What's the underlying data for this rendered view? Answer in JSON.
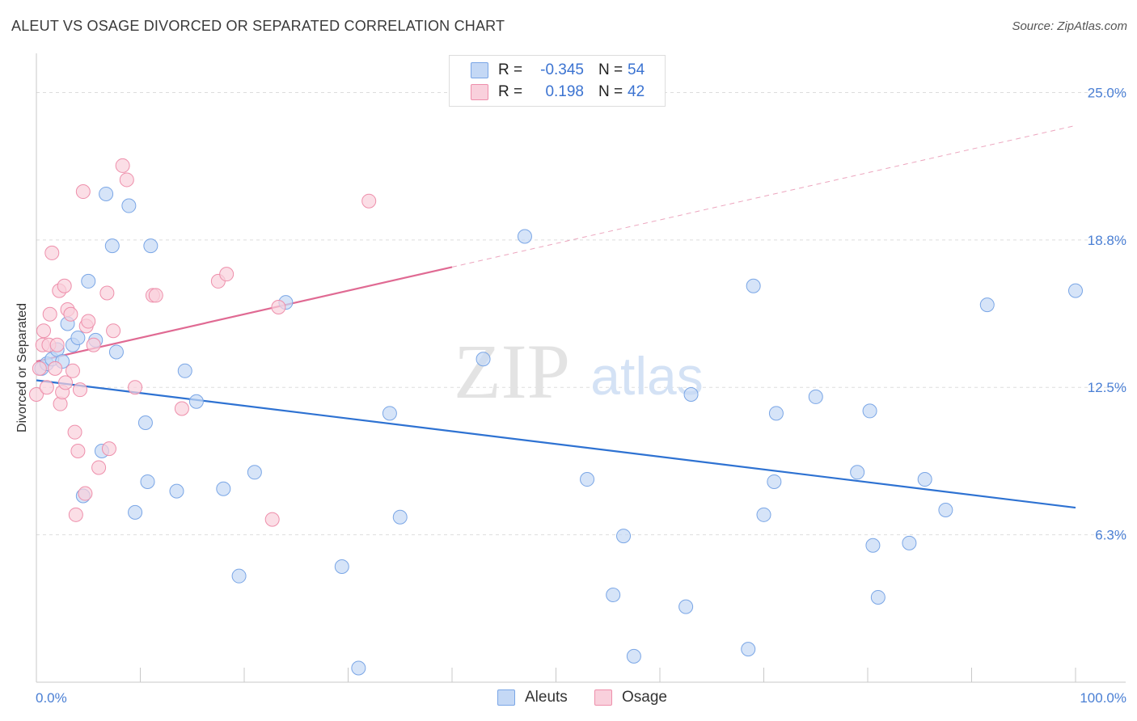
{
  "title": "ALEUT VS OSAGE DIVORCED OR SEPARATED CORRELATION CHART",
  "source": "Source: ZipAtlas.com",
  "watermark": {
    "zip": "ZIP",
    "atlas": "atlas"
  },
  "legend": {
    "rows": [
      {
        "r_label": "R =",
        "r_value": "-0.345",
        "n_label": "N =",
        "n_value": "54"
      },
      {
        "r_label": "R =",
        "r_value": "0.198",
        "n_label": "N =",
        "n_value": "42"
      }
    ]
  },
  "bottom_legend": [
    "Aleuts",
    "Osage"
  ],
  "colors": {
    "aleuts_fill": "#c4d8f5",
    "aleuts_stroke": "#7aa6e6",
    "aleuts_line": "#2e72d2",
    "osage_fill": "#f9d0dc",
    "osage_stroke": "#ee8fab",
    "osage_line": "#e06a93",
    "grid": "#dddddd",
    "tick_text": "#4a7fd4"
  },
  "chart_data": {
    "type": "scatter",
    "title": "ALEUT VS OSAGE DIVORCED OR SEPARATED CORRELATION CHART",
    "xlabel": "",
    "ylabel": "Divorced or Separated",
    "x_tick_labels": [
      "0.0%",
      "100.0%"
    ],
    "y_tick_labels": [
      "6.3%",
      "12.5%",
      "18.8%",
      "25.0%"
    ],
    "y_ticks": [
      6.25,
      12.5,
      18.75,
      25.0
    ],
    "xlim": [
      0,
      100
    ],
    "ylim": [
      0,
      26.25
    ],
    "series": [
      {
        "name": "Aleuts",
        "r": -0.345,
        "n": 54,
        "trend": {
          "x0": 0,
          "y0": 12.8,
          "x1": 100,
          "y1": 7.4
        },
        "points": [
          [
            0.5,
            13.3
          ],
          [
            1.0,
            13.5
          ],
          [
            1.5,
            13.7
          ],
          [
            2.0,
            14.1
          ],
          [
            2.5,
            13.6
          ],
          [
            3.0,
            15.2
          ],
          [
            3.5,
            14.3
          ],
          [
            4.0,
            14.6
          ],
          [
            4.5,
            7.9
          ],
          [
            5.0,
            17.0
          ],
          [
            5.7,
            14.5
          ],
          [
            6.3,
            9.8
          ],
          [
            6.7,
            20.7
          ],
          [
            7.3,
            18.5
          ],
          [
            7.7,
            14.0
          ],
          [
            8.9,
            20.2
          ],
          [
            9.5,
            7.2
          ],
          [
            10.5,
            11.0
          ],
          [
            10.7,
            8.5
          ],
          [
            11.0,
            18.5
          ],
          [
            13.5,
            8.1
          ],
          [
            14.3,
            13.2
          ],
          [
            15.4,
            11.9
          ],
          [
            18.0,
            8.2
          ],
          [
            19.5,
            4.5
          ],
          [
            21.0,
            8.9
          ],
          [
            24.0,
            16.1
          ],
          [
            29.4,
            4.9
          ],
          [
            31.0,
            0.6
          ],
          [
            34.0,
            11.4
          ],
          [
            35.0,
            7.0
          ],
          [
            43.0,
            13.7
          ],
          [
            47.0,
            18.9
          ],
          [
            53.0,
            8.6
          ],
          [
            55.5,
            3.7
          ],
          [
            56.5,
            6.2
          ],
          [
            57.5,
            1.1
          ],
          [
            62.5,
            3.2
          ],
          [
            63.0,
            12.2
          ],
          [
            68.5,
            1.4
          ],
          [
            69.0,
            16.8
          ],
          [
            70.0,
            7.1
          ],
          [
            71.0,
            8.5
          ],
          [
            71.2,
            11.4
          ],
          [
            75.0,
            12.1
          ],
          [
            79.0,
            8.9
          ],
          [
            80.2,
            11.5
          ],
          [
            80.5,
            5.8
          ],
          [
            81.0,
            3.6
          ],
          [
            84.0,
            5.9
          ],
          [
            85.5,
            8.6
          ],
          [
            87.5,
            7.3
          ],
          [
            91.5,
            16.0
          ],
          [
            100.0,
            16.6
          ]
        ]
      },
      {
        "name": "Osage",
        "r": 0.198,
        "n": 42,
        "trend": {
          "x0": 0,
          "y0": 13.6,
          "x1": 40,
          "y1": 17.6,
          "dash_x1": 100,
          "dash_y1": 23.6
        },
        "points": [
          [
            0.0,
            12.2
          ],
          [
            0.3,
            13.3
          ],
          [
            0.6,
            14.3
          ],
          [
            0.7,
            14.9
          ],
          [
            1.0,
            12.5
          ],
          [
            1.2,
            14.3
          ],
          [
            1.3,
            15.6
          ],
          [
            1.5,
            18.2
          ],
          [
            1.8,
            13.3
          ],
          [
            2.0,
            14.3
          ],
          [
            2.2,
            16.6
          ],
          [
            2.3,
            11.8
          ],
          [
            2.5,
            12.3
          ],
          [
            2.7,
            16.8
          ],
          [
            2.8,
            12.7
          ],
          [
            3.0,
            15.8
          ],
          [
            3.3,
            15.6
          ],
          [
            3.5,
            13.2
          ],
          [
            3.7,
            10.6
          ],
          [
            3.8,
            7.1
          ],
          [
            4.0,
            9.8
          ],
          [
            4.2,
            12.4
          ],
          [
            4.5,
            20.8
          ],
          [
            4.7,
            8.0
          ],
          [
            4.8,
            15.1
          ],
          [
            5.0,
            15.3
          ],
          [
            5.5,
            14.3
          ],
          [
            6.0,
            9.1
          ],
          [
            6.8,
            16.5
          ],
          [
            7.0,
            9.9
          ],
          [
            7.4,
            14.9
          ],
          [
            8.3,
            21.9
          ],
          [
            8.7,
            21.3
          ],
          [
            9.5,
            12.5
          ],
          [
            11.2,
            16.4
          ],
          [
            11.5,
            16.4
          ],
          [
            14.0,
            11.6
          ],
          [
            17.5,
            17.0
          ],
          [
            18.3,
            17.3
          ],
          [
            22.7,
            6.9
          ],
          [
            23.3,
            15.9
          ],
          [
            32.0,
            20.4
          ]
        ]
      }
    ]
  }
}
